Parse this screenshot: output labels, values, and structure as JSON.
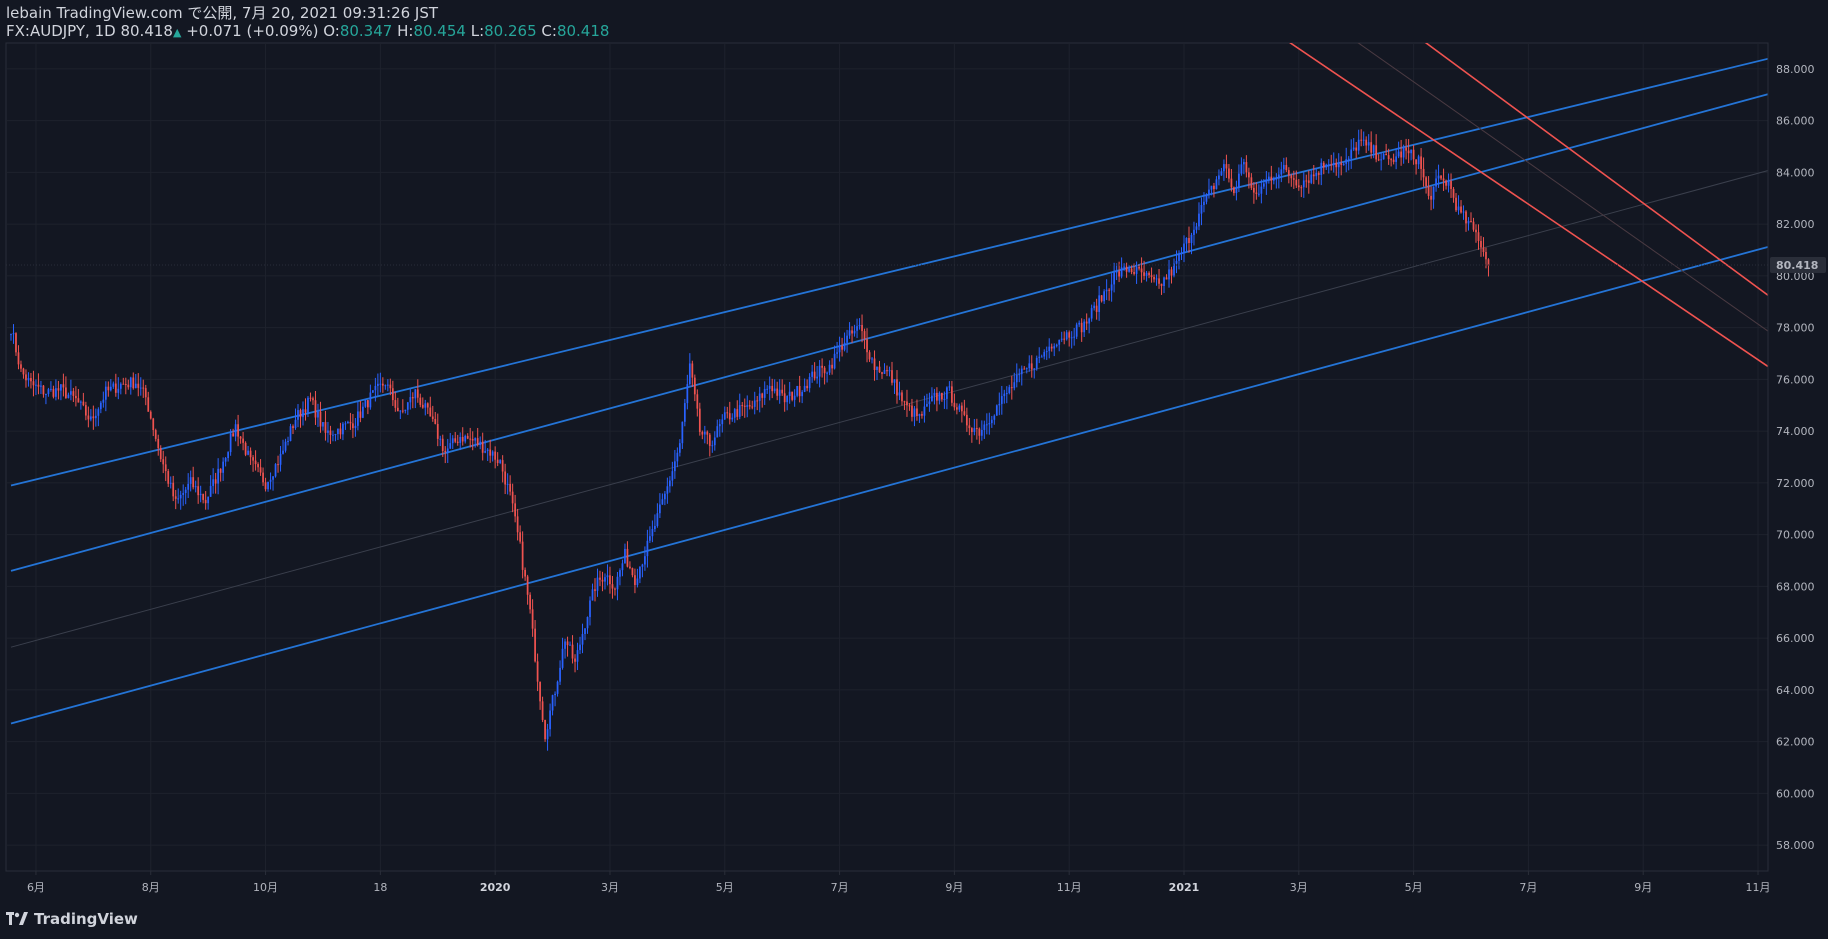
{
  "header": {
    "publisher": "lebain TradingView.com で公開, 7月 20, 2021 09:31:26 JST",
    "symbol": "FX:AUDJPY, 1D",
    "last": "80.418",
    "change": "+0.071 (+0.09%)",
    "o_label": "O:",
    "o_value": "80.347",
    "h_label": "H:",
    "h_value": "80.454",
    "l_label": "L:",
    "l_value": "80.265",
    "c_label": "C:",
    "c_value": "80.418"
  },
  "footer": {
    "brand": "TradingView"
  },
  "colors": {
    "background": "#131722",
    "up": "#2962ff",
    "down": "#ef5350",
    "channel": "#2474d6",
    "downtrend": "#ef5350",
    "grid": "#1e222d"
  },
  "chart_data": {
    "type": "candlestick",
    "symbol": "FX:AUDJPY",
    "interval": "1D",
    "ylim": [
      57,
      89
    ],
    "y_ticks": [
      58,
      60,
      62,
      64,
      66,
      68,
      70,
      72,
      74,
      76,
      78,
      80,
      82,
      84,
      86,
      88
    ],
    "y_tick_labels": [
      "58.000",
      "60.000",
      "62.000",
      "64.000",
      "66.000",
      "68.000",
      "70.000",
      "72.000",
      "74.000",
      "76.000",
      "78.000",
      "80.000",
      "82.000",
      "84.000",
      "86.000",
      "88.000"
    ],
    "last_price_label": "80.418",
    "x_labels": [
      {
        "label": "6月",
        "year": false
      },
      {
        "label": "8月",
        "year": false
      },
      {
        "label": "10月",
        "year": false
      },
      {
        "label": "18",
        "year": false
      },
      {
        "label": "2020",
        "year": true
      },
      {
        "label": "3月",
        "year": false
      },
      {
        "label": "5月",
        "year": false
      },
      {
        "label": "7月",
        "year": false
      },
      {
        "label": "9月",
        "year": false
      },
      {
        "label": "11月",
        "year": false
      },
      {
        "label": "2021",
        "year": true
      },
      {
        "label": "3月",
        "year": false
      },
      {
        "label": "5月",
        "year": false
      },
      {
        "label": "7月",
        "year": false
      },
      {
        "label": "9月",
        "year": false
      },
      {
        "label": "11月",
        "year": false
      }
    ],
    "x_label_index": [
      10,
      56,
      102,
      148,
      194,
      240,
      286,
      332,
      378,
      424,
      470,
      516,
      562,
      608,
      654,
      700
    ],
    "price_path": [
      [
        0,
        78.0
      ],
      [
        4,
        76.3
      ],
      [
        8,
        75.8
      ],
      [
        14,
        75.5
      ],
      [
        20,
        75.6
      ],
      [
        26,
        75.2
      ],
      [
        32,
        74.4
      ],
      [
        38,
        75.5
      ],
      [
        44,
        75.8
      ],
      [
        50,
        75.9
      ],
      [
        54,
        75.3
      ],
      [
        60,
        73.0
      ],
      [
        66,
        71.2
      ],
      [
        72,
        72.0
      ],
      [
        78,
        71.3
      ],
      [
        84,
        72.6
      ],
      [
        90,
        74.2
      ],
      [
        96,
        72.8
      ],
      [
        102,
        72.0
      ],
      [
        108,
        73.0
      ],
      [
        114,
        74.5
      ],
      [
        120,
        75.2
      ],
      [
        126,
        73.9
      ],
      [
        132,
        74.1
      ],
      [
        138,
        74.4
      ],
      [
        144,
        75.3
      ],
      [
        150,
        75.9
      ],
      [
        156,
        74.6
      ],
      [
        162,
        75.5
      ],
      [
        168,
        74.5
      ],
      [
        174,
        73.2
      ],
      [
        180,
        73.8
      ],
      [
        186,
        73.6
      ],
      [
        192,
        73.2
      ],
      [
        196,
        72.8
      ],
      [
        200,
        71.5
      ],
      [
        204,
        69.5
      ],
      [
        208,
        67.0
      ],
      [
        211,
        64.5
      ],
      [
        214,
        62.3
      ],
      [
        218,
        64.0
      ],
      [
        222,
        66.0
      ],
      [
        226,
        65.0
      ],
      [
        230,
        66.6
      ],
      [
        234,
        68.0
      ],
      [
        238,
        68.5
      ],
      [
        242,
        68.0
      ],
      [
        246,
        69.2
      ],
      [
        250,
        68.3
      ],
      [
        256,
        69.8
      ],
      [
        262,
        71.5
      ],
      [
        268,
        73.5
      ],
      [
        272,
        76.5
      ],
      [
        276,
        74.0
      ],
      [
        280,
        73.5
      ],
      [
        286,
        74.5
      ],
      [
        292,
        74.8
      ],
      [
        298,
        75.0
      ],
      [
        304,
        75.8
      ],
      [
        310,
        75.2
      ],
      [
        316,
        75.6
      ],
      [
        322,
        76.2
      ],
      [
        328,
        76.5
      ],
      [
        334,
        77.5
      ],
      [
        340,
        78.0
      ],
      [
        346,
        76.5
      ],
      [
        352,
        76.2
      ],
      [
        358,
        75.0
      ],
      [
        364,
        74.5
      ],
      [
        370,
        75.3
      ],
      [
        376,
        75.5
      ],
      [
        382,
        74.4
      ],
      [
        388,
        74.0
      ],
      [
        394,
        74.8
      ],
      [
        400,
        75.6
      ],
      [
        406,
        76.3
      ],
      [
        412,
        76.8
      ],
      [
        418,
        77.5
      ],
      [
        424,
        77.8
      ],
      [
        430,
        78.1
      ],
      [
        436,
        79.0
      ],
      [
        442,
        80.0
      ],
      [
        448,
        80.3
      ],
      [
        454,
        80.0
      ],
      [
        460,
        79.6
      ],
      [
        466,
        80.3
      ],
      [
        472,
        81.5
      ],
      [
        478,
        82.8
      ],
      [
        482,
        83.5
      ],
      [
        486,
        84.3
      ],
      [
        490,
        83.2
      ],
      [
        494,
        84.5
      ],
      [
        498,
        83.0
      ],
      [
        504,
        83.8
      ],
      [
        510,
        84.1
      ],
      [
        516,
        83.6
      ],
      [
        522,
        83.9
      ],
      [
        528,
        84.5
      ],
      [
        534,
        84.2
      ],
      [
        540,
        85.2
      ],
      [
        546,
        84.8
      ],
      [
        552,
        84.4
      ],
      [
        558,
        84.8
      ],
      [
        564,
        84.5
      ],
      [
        568,
        83.0
      ],
      [
        572,
        83.7
      ],
      [
        576,
        83.6
      ],
      [
        580,
        82.5
      ],
      [
        584,
        82.0
      ],
      [
        588,
        81.5
      ],
      [
        592,
        80.4
      ]
    ],
    "channel_lines": [
      {
        "name": "channel-upper",
        "from": [
          0,
          71.9
        ],
        "to": [
          730,
          89.0
        ]
      },
      {
        "name": "channel-middle",
        "from": [
          0,
          68.6
        ],
        "to": [
          730,
          87.7
        ]
      },
      {
        "name": "channel-lower",
        "from": [
          0,
          62.7
        ],
        "to": [
          730,
          81.8
        ]
      }
    ],
    "downtrend_lines": [
      {
        "name": "downtrend-upper",
        "from": [
          560,
          89.5
        ],
        "to": [
          730,
          77.4
        ]
      },
      {
        "name": "downtrend-lower",
        "from": [
          505,
          89.5
        ],
        "to": [
          730,
          74.8
        ]
      }
    ],
    "x_range": [
      -2,
      704
    ]
  }
}
